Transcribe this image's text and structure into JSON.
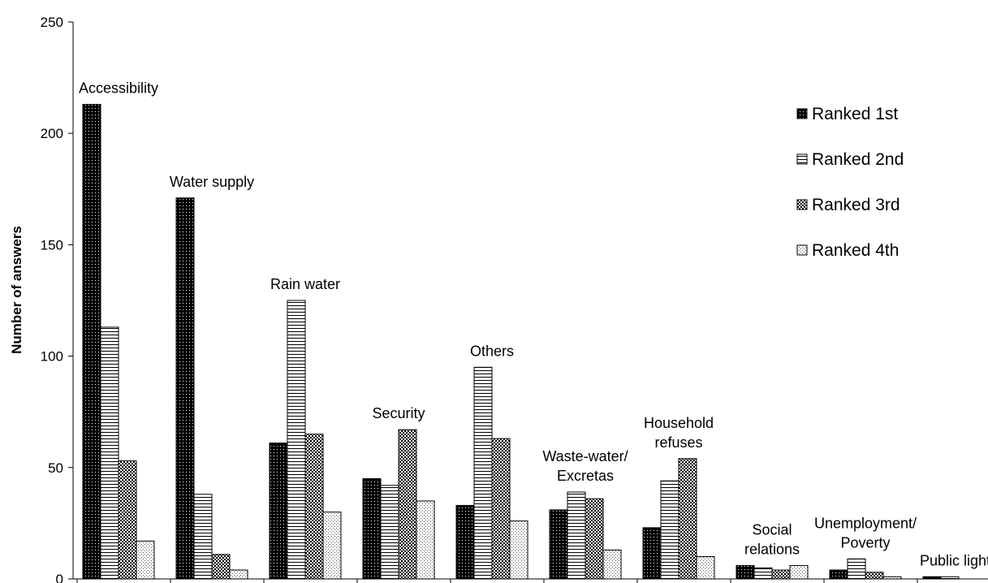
{
  "chart_data": {
    "type": "bar",
    "title": "",
    "xlabel": "",
    "ylabel": "Number of answers",
    "ylim": [
      0,
      250
    ],
    "yticks": [
      0,
      50,
      100,
      150,
      200,
      250
    ],
    "grid": false,
    "legend_position": "top-right",
    "categories": [
      [
        "Accessibility"
      ],
      [
        "Water supply"
      ],
      [
        "Rain water"
      ],
      [
        "Security"
      ],
      [
        "Others"
      ],
      [
        "Waste-water/",
        "Excretas"
      ],
      [
        "Household",
        "refuses"
      ],
      [
        "Social",
        "relations"
      ],
      [
        "Unemployment/",
        "Poverty"
      ],
      [
        "Public lights"
      ]
    ],
    "series": [
      {
        "name": "Ranked  1st",
        "pattern": "dotted-dark",
        "values": [
          213,
          171,
          61,
          45,
          33,
          31,
          23,
          6,
          4,
          1
        ]
      },
      {
        "name": "Ranked 2nd",
        "pattern": "horizontal-lines",
        "values": [
          113,
          38,
          125,
          42,
          95,
          39,
          44,
          5,
          9,
          1
        ]
      },
      {
        "name": "Ranked 3rd",
        "pattern": "checker",
        "values": [
          53,
          11,
          65,
          67,
          63,
          36,
          54,
          4,
          3,
          0
        ]
      },
      {
        "name": "Ranked 4th",
        "pattern": "dotted-light",
        "values": [
          17,
          4,
          30,
          35,
          26,
          13,
          10,
          6,
          1,
          0
        ]
      }
    ]
  }
}
